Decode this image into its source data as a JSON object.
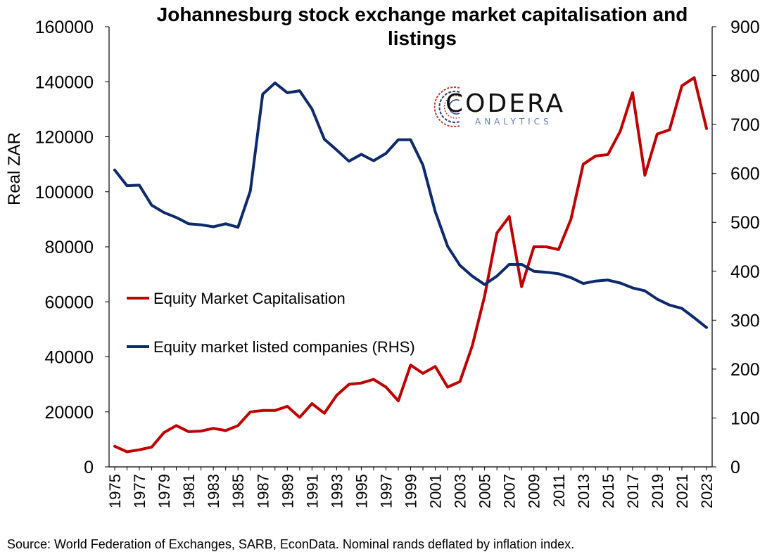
{
  "chart_data": {
    "type": "line",
    "title": "Johannesburg stock exchange market capitalisation and listings",
    "ylabel": "Real ZAR",
    "ylim": [
      0,
      160000
    ],
    "yticks": [
      "0",
      "20000",
      "40000",
      "60000",
      "80000",
      "100000",
      "120000",
      "140000",
      "160000"
    ],
    "y2lim": [
      0,
      900
    ],
    "y2ticks": [
      "0",
      "100",
      "200",
      "300",
      "400",
      "500",
      "600",
      "700",
      "800",
      "900"
    ],
    "xticks": [
      "1975",
      "1977",
      "1979",
      "1981",
      "1983",
      "1985",
      "1987",
      "1989",
      "1991",
      "1993",
      "1995",
      "1997",
      "1999",
      "2001",
      "2003",
      "2005",
      "2007",
      "2009",
      "2011",
      "2013",
      "2015",
      "2017",
      "2019",
      "2021",
      "2023"
    ],
    "x": [
      1975,
      1976,
      1977,
      1978,
      1979,
      1980,
      1981,
      1982,
      1983,
      1984,
      1985,
      1986,
      1987,
      1988,
      1989,
      1990,
      1991,
      1992,
      1993,
      1994,
      1995,
      1996,
      1997,
      1998,
      1999,
      2000,
      2001,
      2002,
      2003,
      2004,
      2005,
      2006,
      2007,
      2008,
      2009,
      2010,
      2011,
      2012,
      2013,
      2014,
      2015,
      2016,
      2017,
      2018,
      2019,
      2020,
      2021,
      2022,
      2023
    ],
    "legend_position": "left-middle",
    "grid": false,
    "series": [
      {
        "name": "Equity Market Capitalisation",
        "axis": "left",
        "color": "#c00000",
        "values": [
          7500,
          5500,
          6200,
          7200,
          12500,
          15000,
          12800,
          13000,
          14000,
          13200,
          15000,
          20000,
          20500,
          20500,
          22000,
          18000,
          23000,
          19500,
          26000,
          30000,
          30500,
          31800,
          29000,
          24000,
          37000,
          34000,
          36500,
          29000,
          31000,
          44000,
          62000,
          85000,
          91000,
          65500,
          80000,
          80000,
          79000,
          90000,
          110000,
          113000,
          113500,
          122000,
          136000,
          106000,
          121000,
          122500,
          138500,
          141500,
          123000
        ]
      },
      {
        "name": "Equity market listed companies (RHS)",
        "axis": "right",
        "color": "#0d2a6b",
        "values": [
          607,
          575,
          576,
          535,
          520,
          510,
          497,
          495,
          491,
          497,
          490,
          564,
          762,
          785,
          765,
          769,
          732,
          670,
          648,
          625,
          639,
          626,
          641,
          669,
          669,
          617,
          522,
          451,
          412,
          390,
          373,
          390,
          414,
          414,
          400,
          398,
          395,
          387,
          375,
          380,
          382,
          376,
          366,
          360,
          343,
          331,
          324,
          305,
          285
        ]
      }
    ]
  },
  "source": "Source: World Federation of Exchanges, SARB, EconData. Nominal rands deflated by inflation index.",
  "logo": {
    "word": "CODERA",
    "sub": "ANALYTICS"
  }
}
